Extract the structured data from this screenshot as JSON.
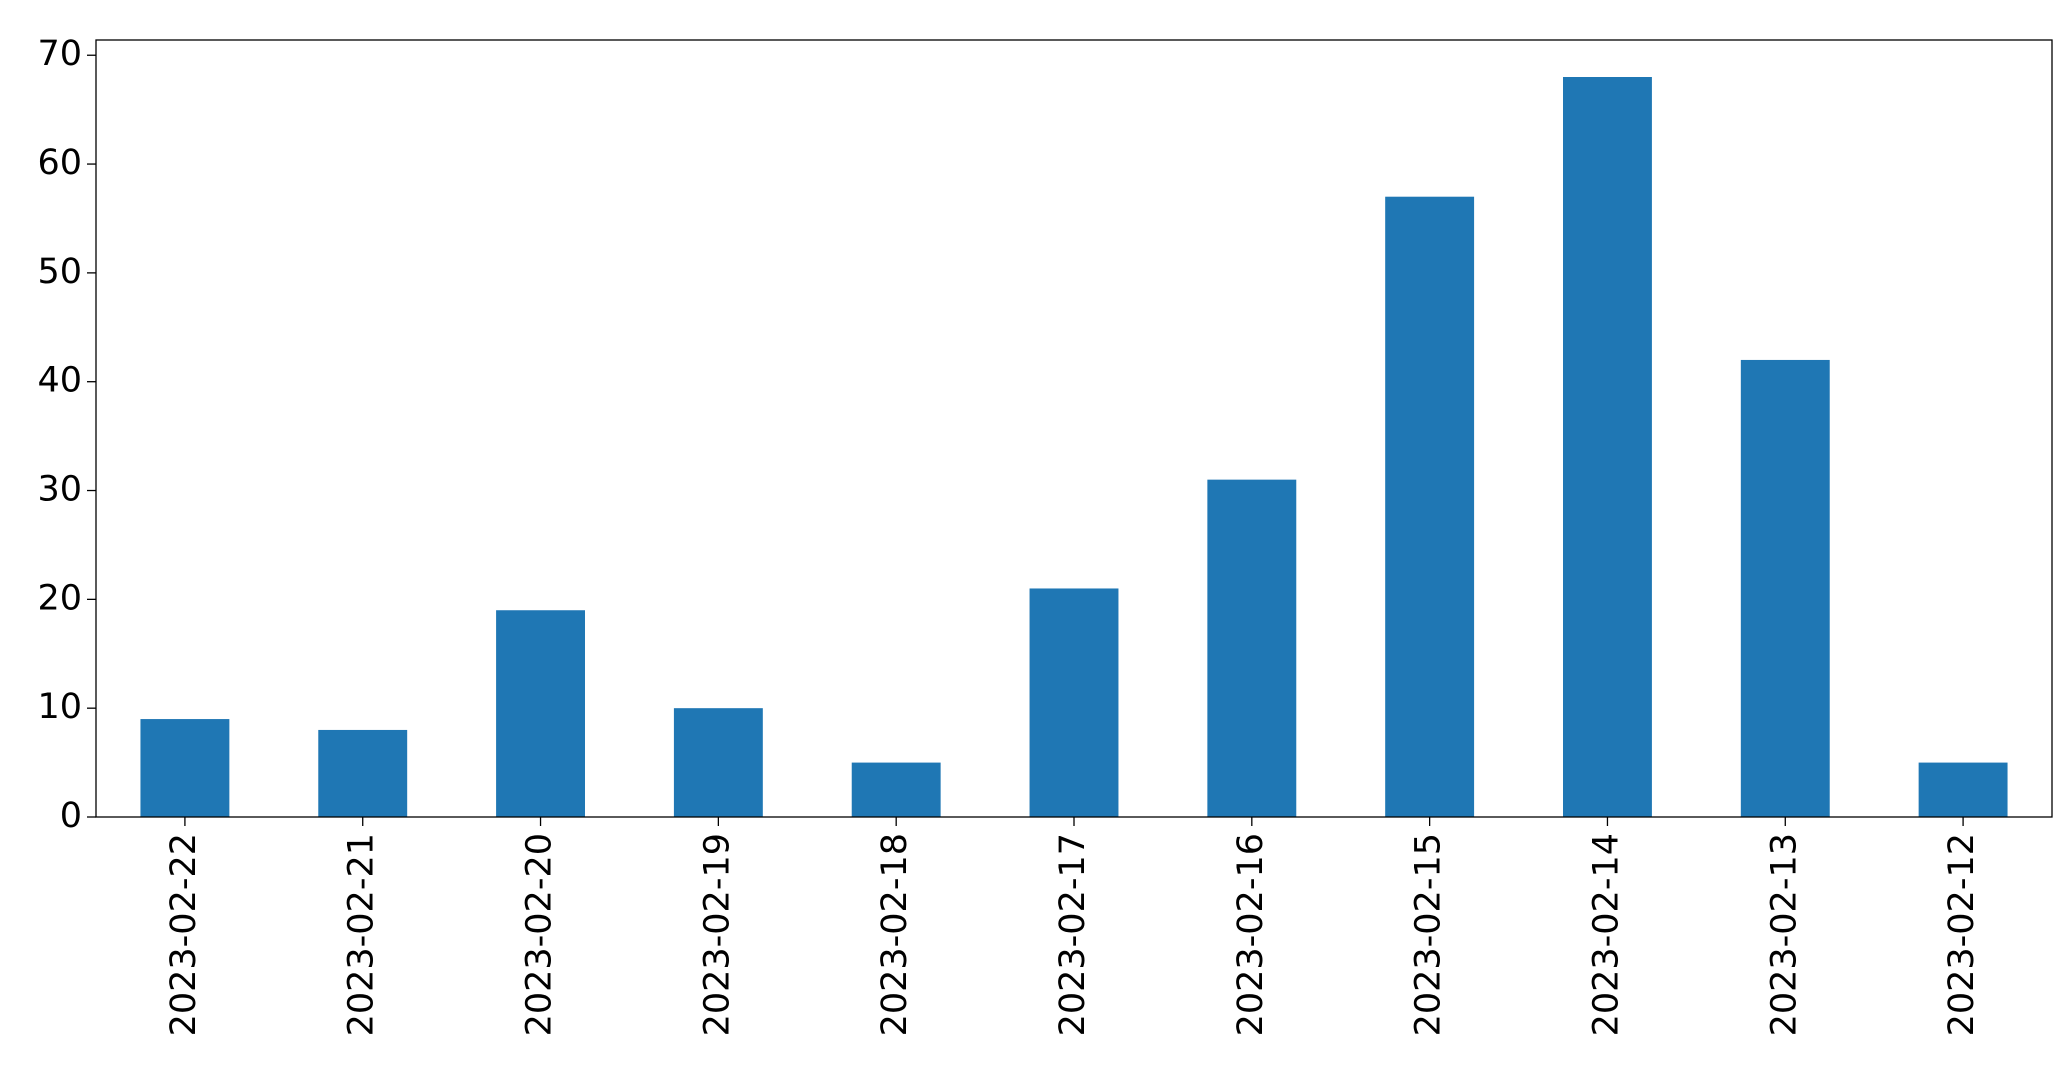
{
  "chart_data": {
    "type": "bar",
    "categories": [
      "2023-02-22",
      "2023-02-21",
      "2023-02-20",
      "2023-02-19",
      "2023-02-18",
      "2023-02-17",
      "2023-02-16",
      "2023-02-15",
      "2023-02-14",
      "2023-02-13",
      "2023-02-12"
    ],
    "values": [
      9,
      8,
      19,
      10,
      5,
      21,
      31,
      57,
      68,
      42,
      5
    ],
    "color": "#1f77b4",
    "ylim": [
      0,
      71.4
    ],
    "yticks": [
      0,
      10,
      20,
      30,
      40,
      50,
      60,
      70
    ],
    "grid": false
  }
}
